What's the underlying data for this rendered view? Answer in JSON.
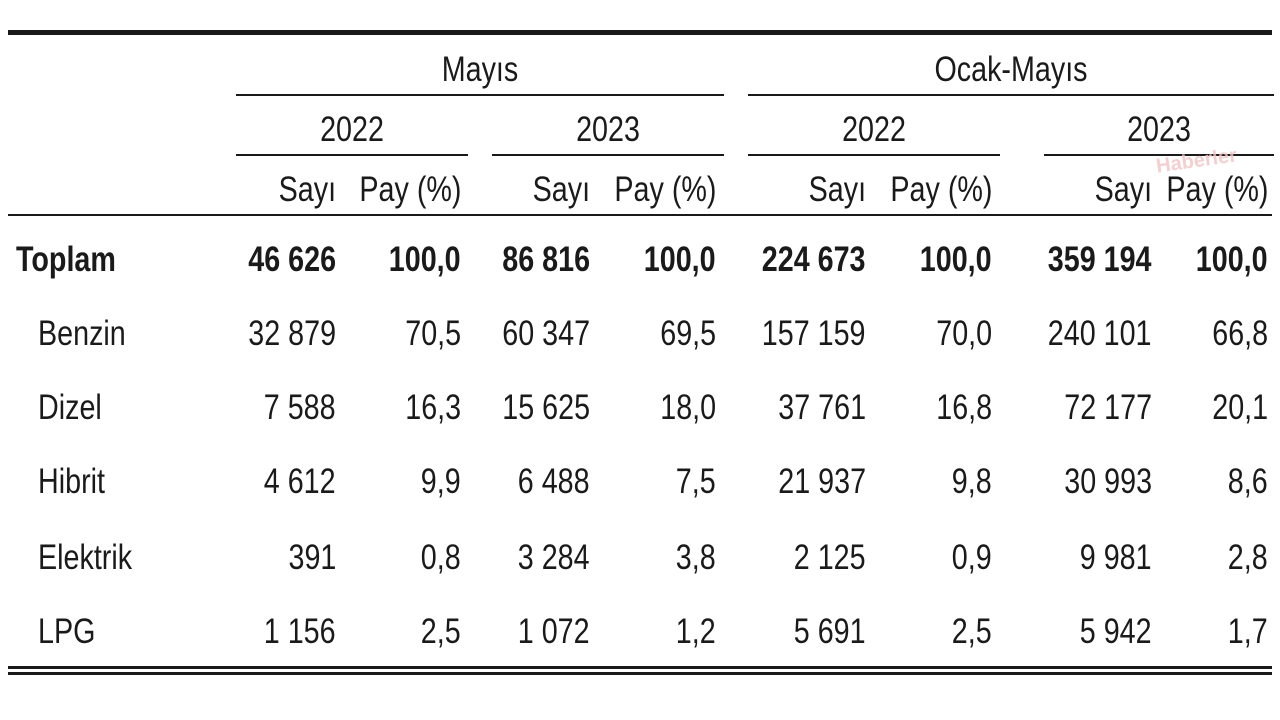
{
  "chart_data": {
    "type": "table",
    "title": "",
    "groups": [
      {
        "label": "Mayıs",
        "years": [
          "2022",
          "2023"
        ]
      },
      {
        "label": "Ocak-Mayıs",
        "years": [
          "2022",
          "2023"
        ]
      }
    ],
    "subheaders": [
      "Sayı",
      "Pay (%)"
    ],
    "columns": [
      "Mayıs 2022 Sayı",
      "Mayıs 2022 Pay (%)",
      "Mayıs 2023 Sayı",
      "Mayıs 2023 Pay (%)",
      "Ocak-Mayıs 2022 Sayı",
      "Ocak-Mayıs 2022 Pay (%)",
      "Ocak-Mayıs 2023 Sayı",
      "Ocak-Mayıs 2023 Pay (%)"
    ],
    "rows": [
      {
        "label": "Toplam",
        "bold": true,
        "values": [
          "46 626",
          "100,0",
          "86 816",
          "100,0",
          "224 673",
          "100,0",
          "359 194",
          "100,0"
        ]
      },
      {
        "label": "Benzin",
        "bold": false,
        "values": [
          "32 879",
          "70,5",
          "60 347",
          "69,5",
          "157 159",
          "70,0",
          "240 101",
          "66,8"
        ]
      },
      {
        "label": "Dizel",
        "bold": false,
        "values": [
          "7 588",
          "16,3",
          "15 625",
          "18,0",
          "37 761",
          "16,8",
          "72 177",
          "20,1"
        ]
      },
      {
        "label": "Hibrit",
        "bold": false,
        "values": [
          "4 612",
          "9,9",
          "6 488",
          "7,5",
          "21 937",
          "9,8",
          "30 993",
          "8,6"
        ]
      },
      {
        "label": "Elektrik",
        "bold": false,
        "values": [
          "391",
          "0,8",
          "3 284",
          "3,8",
          "2 125",
          "0,9",
          "9 981",
          "2,8"
        ]
      },
      {
        "label": "LPG",
        "bold": false,
        "values": [
          "1 156",
          "2,5",
          "1 072",
          "1,2",
          "5 691",
          "2,5",
          "5 942",
          "1,7"
        ]
      }
    ]
  },
  "watermark": "Haberler"
}
